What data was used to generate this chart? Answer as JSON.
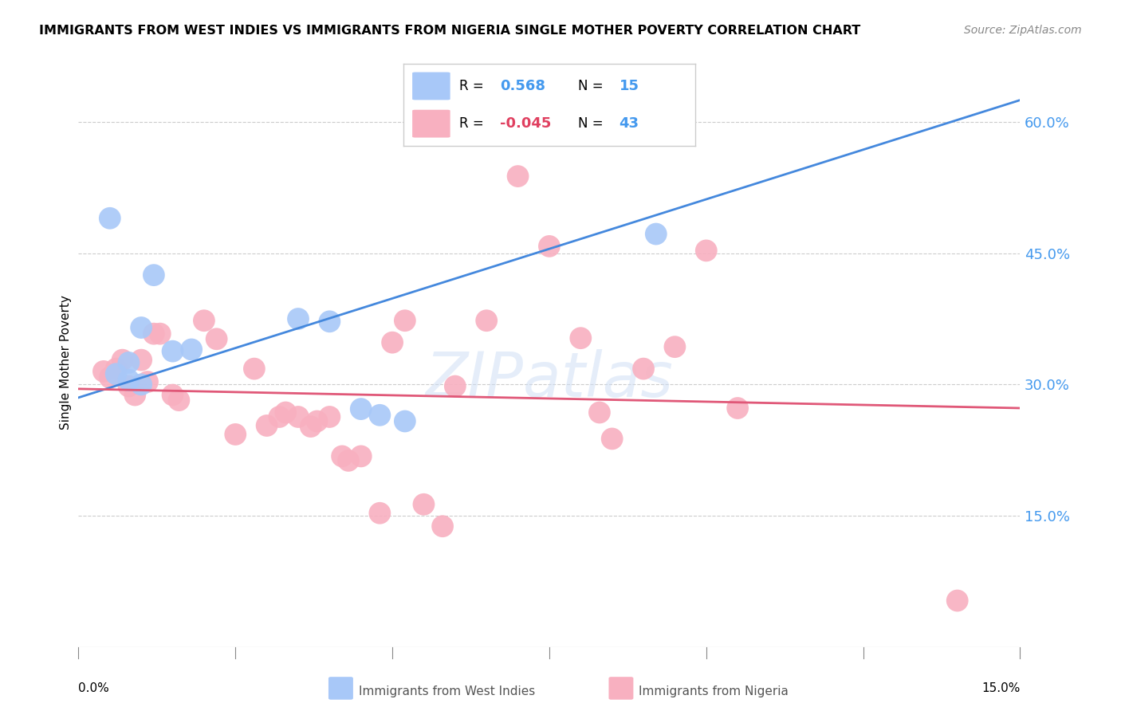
{
  "title": "IMMIGRANTS FROM WEST INDIES VS IMMIGRANTS FROM NIGERIA SINGLE MOTHER POVERTY CORRELATION CHART",
  "source": "Source: ZipAtlas.com",
  "ylabel": "Single Mother Poverty",
  "y_ticks": [
    0.0,
    0.15,
    0.3,
    0.45,
    0.6
  ],
  "x_range": [
    0.0,
    0.15
  ],
  "y_range": [
    0.0,
    0.65
  ],
  "watermark": "ZIPatlas",
  "wi_R": 0.568,
  "wi_N": 15,
  "ng_R": -0.045,
  "ng_N": 43,
  "west_indies_color": "#a8c8f8",
  "nigeria_color": "#f8b0c0",
  "trend_wi_color": "#4488dd",
  "trend_ng_color": "#e05878",
  "trend_wi_y0": 0.285,
  "trend_wi_y1": 0.625,
  "trend_ng_y0": 0.295,
  "trend_ng_y1": 0.273,
  "west_indies_points": [
    [
      0.005,
      0.49
    ],
    [
      0.012,
      0.425
    ],
    [
      0.01,
      0.365
    ],
    [
      0.008,
      0.325
    ],
    [
      0.006,
      0.312
    ],
    [
      0.008,
      0.305
    ],
    [
      0.01,
      0.3
    ],
    [
      0.015,
      0.338
    ],
    [
      0.018,
      0.34
    ],
    [
      0.035,
      0.375
    ],
    [
      0.04,
      0.372
    ],
    [
      0.045,
      0.272
    ],
    [
      0.048,
      0.265
    ],
    [
      0.052,
      0.258
    ],
    [
      0.092,
      0.472
    ]
  ],
  "nigeria_points": [
    [
      0.004,
      0.315
    ],
    [
      0.005,
      0.308
    ],
    [
      0.006,
      0.318
    ],
    [
      0.007,
      0.328
    ],
    [
      0.008,
      0.298
    ],
    [
      0.009,
      0.288
    ],
    [
      0.01,
      0.328
    ],
    [
      0.011,
      0.303
    ],
    [
      0.012,
      0.358
    ],
    [
      0.013,
      0.358
    ],
    [
      0.015,
      0.288
    ],
    [
      0.016,
      0.282
    ],
    [
      0.02,
      0.373
    ],
    [
      0.022,
      0.352
    ],
    [
      0.025,
      0.243
    ],
    [
      0.028,
      0.318
    ],
    [
      0.03,
      0.253
    ],
    [
      0.032,
      0.263
    ],
    [
      0.033,
      0.268
    ],
    [
      0.035,
      0.263
    ],
    [
      0.037,
      0.252
    ],
    [
      0.038,
      0.258
    ],
    [
      0.04,
      0.263
    ],
    [
      0.042,
      0.218
    ],
    [
      0.043,
      0.213
    ],
    [
      0.045,
      0.218
    ],
    [
      0.048,
      0.153
    ],
    [
      0.05,
      0.348
    ],
    [
      0.052,
      0.373
    ],
    [
      0.055,
      0.163
    ],
    [
      0.058,
      0.138
    ],
    [
      0.06,
      0.298
    ],
    [
      0.065,
      0.373
    ],
    [
      0.07,
      0.538
    ],
    [
      0.075,
      0.458
    ],
    [
      0.08,
      0.353
    ],
    [
      0.083,
      0.268
    ],
    [
      0.085,
      0.238
    ],
    [
      0.09,
      0.318
    ],
    [
      0.095,
      0.343
    ],
    [
      0.1,
      0.453
    ],
    [
      0.105,
      0.273
    ],
    [
      0.14,
      0.053
    ]
  ],
  "legend_box_color": "#dddddd",
  "right_axis_color": "#4499ee",
  "grid_color": "#cccccc"
}
